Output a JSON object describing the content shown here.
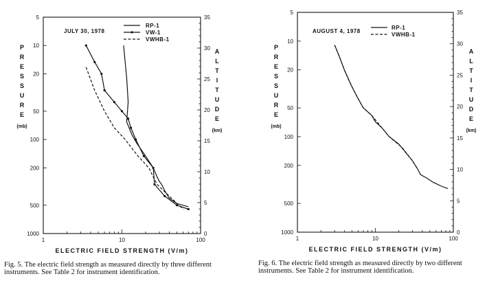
{
  "chart_data": [
    {
      "type": "line",
      "date_label": "JULY 30, 1978",
      "xlabel": "ELECTRIC FIELD STRENGTH (V/m)",
      "x_scale": "log",
      "xlim": [
        1,
        100
      ],
      "x_ticks": [
        "1",
        "10",
        "100"
      ],
      "y_left_label": "PRESSURE",
      "y_left_unit": "(mb)",
      "y_left_scale": "log",
      "y_left_reversed": true,
      "ylim_pressure": [
        5,
        1000
      ],
      "y_left_ticks": [
        "5",
        "10",
        "20",
        "50",
        "100",
        "200",
        "500",
        "1000"
      ],
      "y_right_label": "ALTITUDE",
      "y_right_unit": "(km)",
      "ylim_altitude": [
        0,
        35
      ],
      "y_right_ticks": [
        "0",
        "5",
        "10",
        "15",
        "20",
        "25",
        "30",
        "35"
      ],
      "legend_position": "top-right",
      "series": [
        {
          "name": "RP-1",
          "style": "solid",
          "points": [
            [
              10.5,
              10
            ],
            [
              11.5,
              22
            ],
            [
              12,
              40
            ],
            [
              11.5,
              65
            ],
            [
              13.5,
              90
            ],
            [
              15.5,
              110
            ],
            [
              20,
              150
            ],
            [
              25,
              200
            ],
            [
              28,
              250
            ],
            [
              30,
              280
            ],
            [
              32,
              300
            ],
            [
              35,
              350
            ],
            [
              40,
              420
            ],
            [
              50,
              480
            ],
            [
              60,
              500
            ],
            [
              70,
              520
            ]
          ]
        },
        {
          "name": "VW-1",
          "style": "solid-markers",
          "points": [
            [
              3.5,
              10
            ],
            [
              4.5,
              15
            ],
            [
              5.5,
              20
            ],
            [
              6,
              30
            ],
            [
              8,
              40
            ],
            [
              10,
              50
            ],
            [
              12,
              60
            ],
            [
              13,
              75
            ],
            [
              15,
              100
            ],
            [
              19,
              150
            ],
            [
              25,
              200
            ],
            [
              26,
              300
            ],
            [
              35,
              400
            ],
            [
              50,
              500
            ],
            [
              70,
              550
            ]
          ]
        },
        {
          "name": "VWHB-1",
          "style": "dashed",
          "points": [
            [
              3.5,
              17
            ],
            [
              4.5,
              30
            ],
            [
              6,
              50
            ],
            [
              8,
              75
            ],
            [
              11,
              100
            ],
            [
              16,
              150
            ],
            [
              22,
              200
            ],
            [
              25,
              250
            ],
            [
              28,
              300
            ],
            [
              40,
              400
            ],
            [
              60,
              550
            ]
          ]
        }
      ]
    },
    {
      "type": "line",
      "date_label": "AUGUST 4, 1978",
      "xlabel": "ELECTRIC FIELD STRENGTH (V/m)",
      "x_scale": "log",
      "xlim": [
        1,
        100
      ],
      "x_ticks": [
        "1",
        "10",
        "100"
      ],
      "y_left_label": "PRESSURE",
      "y_left_unit": "(mb)",
      "y_left_scale": "log",
      "y_left_reversed": true,
      "ylim_pressure": [
        5,
        1000
      ],
      "y_left_ticks": [
        "5",
        "10",
        "20",
        "50",
        "100",
        "200",
        "500",
        "1000"
      ],
      "y_right_label": "ALTITUDE",
      "y_right_unit": "(km)",
      "ylim_altitude": [
        0,
        35
      ],
      "y_right_ticks": [
        "0",
        "5",
        "10",
        "15",
        "20",
        "25",
        "30",
        "35"
      ],
      "legend_position": "top-right",
      "series": [
        {
          "name": "RP-1",
          "style": "solid",
          "points": [
            [
              3,
              11
            ],
            [
              3.5,
              15
            ],
            [
              4,
              20
            ],
            [
              5,
              30
            ],
            [
              6,
              40
            ],
            [
              7,
              50
            ],
            [
              9,
              60
            ],
            [
              10,
              70
            ],
            [
              12,
              80
            ],
            [
              15,
              100
            ],
            [
              20,
              120
            ],
            [
              25,
              150
            ],
            [
              30,
              180
            ],
            [
              35,
              220
            ],
            [
              38,
              250
            ],
            [
              45,
              270
            ],
            [
              55,
              300
            ],
            [
              70,
              330
            ],
            [
              85,
              350
            ]
          ]
        },
        {
          "name": "VWHB-1",
          "style": "dashed",
          "points": [
            [
              3,
              11
            ],
            [
              3.5,
              15
            ],
            [
              4,
              20
            ],
            [
              4.5,
              25
            ],
            [
              5.5,
              35
            ],
            [
              7,
              50
            ],
            [
              9,
              60
            ],
            [
              12,
              80
            ],
            [
              15,
              100
            ],
            [
              22,
              130
            ],
            [
              30,
              180
            ],
            [
              35,
              220
            ]
          ]
        }
      ]
    }
  ],
  "captions": {
    "fig5": "Fig. 5.  The electric field strength as measured directly by three different instruments. See Table 2 for instrument identification.",
    "fig6": "Fig. 6.  The electric field strength as measured directly by two different instruments. See Table 2 for instrument identification."
  }
}
